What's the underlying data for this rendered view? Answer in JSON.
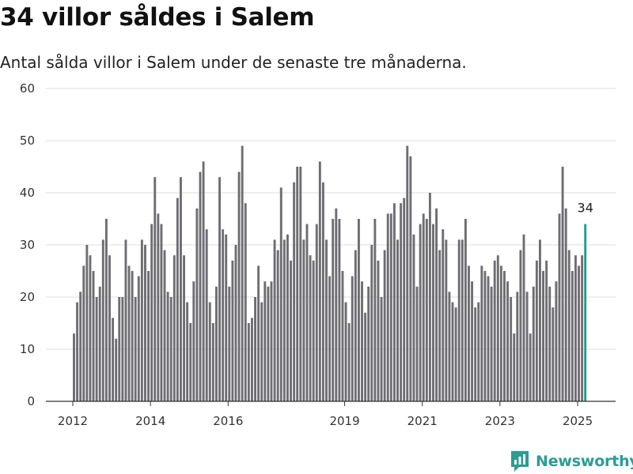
{
  "header": {
    "title": "34 villor såldes i Salem",
    "subtitle": "Antal sålda villor i Salem under de senaste tre månaderna."
  },
  "brand": {
    "name": "Newsworthy"
  },
  "colors": {
    "bar": "#6e6d72",
    "highlight": "#1a9e96",
    "grid": "#dddddd",
    "axis": "#333333"
  },
  "chart_data": {
    "type": "bar",
    "title": "34 villor såldes i Salem",
    "subtitle": "Antal sålda villor i Salem under de senaste tre månaderna.",
    "xlabel": "",
    "ylabel": "",
    "ylim": [
      0,
      60
    ],
    "yticks": [
      0,
      10,
      20,
      30,
      40,
      50,
      60
    ],
    "xticks": [
      2012,
      2014,
      2016,
      2019,
      2021,
      2023,
      2025
    ],
    "grid": true,
    "x_start": "2012-01",
    "x_frequency": "monthly",
    "highlight_label": "34",
    "values": [
      13,
      19,
      21,
      26,
      30,
      28,
      25,
      20,
      22,
      31,
      35,
      28,
      16,
      12,
      20,
      20,
      31,
      26,
      25,
      20,
      24,
      31,
      30,
      25,
      34,
      43,
      36,
      34,
      29,
      21,
      20,
      28,
      39,
      43,
      28,
      19,
      15,
      23,
      37,
      44,
      46,
      33,
      19,
      15,
      22,
      43,
      33,
      32,
      22,
      27,
      30,
      44,
      49,
      38,
      15,
      16,
      20,
      26,
      19,
      23,
      22,
      23,
      31,
      29,
      41,
      31,
      32,
      27,
      42,
      45,
      45,
      31,
      34,
      28,
      27,
      34,
      46,
      42,
      31,
      24,
      35,
      37,
      35,
      25,
      19,
      15,
      24,
      29,
      35,
      23,
      17,
      22,
      30,
      35,
      27,
      20,
      29,
      36,
      36,
      38,
      31,
      38,
      39,
      49,
      47,
      32,
      22,
      34,
      36,
      35,
      40,
      34,
      37,
      29,
      33,
      31,
      21,
      19,
      18,
      31,
      31,
      35,
      26,
      23,
      18,
      19,
      26,
      25,
      24,
      22,
      27,
      28,
      26,
      25,
      23,
      20,
      13,
      21,
      29,
      32,
      21,
      13,
      22,
      27,
      31,
      25,
      27,
      22,
      18,
      23,
      36,
      45,
      37,
      29,
      25,
      28,
      26,
      28,
      34
    ]
  }
}
